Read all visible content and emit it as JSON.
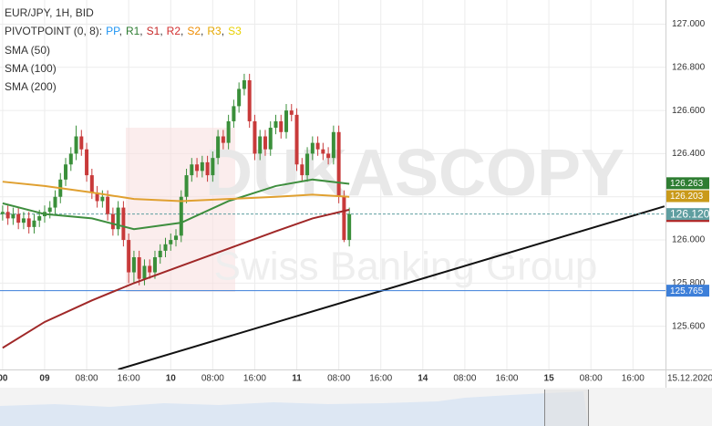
{
  "chart_data": {
    "type": "candlestick",
    "header": "EUR/JPY, 1H, BID",
    "pivot_label": "PIVOTPOINT (0, 8):",
    "pivot_items": [
      {
        "name": "PP",
        "color": "#2196f3"
      },
      {
        "name": "R1",
        "color": "#2e7d32"
      },
      {
        "name": "S1",
        "color": "#c62828"
      },
      {
        "name": "R2",
        "color": "#d32f2f"
      },
      {
        "name": "S2",
        "color": "#ef8c00"
      },
      {
        "name": "R3",
        "color": "#e6a800"
      },
      {
        "name": "S3",
        "color": "#e8d000"
      }
    ],
    "watermark": "DUKASCOPY",
    "watermark_sub": "Swiss Banking Group",
    "date_label": "15.12.2020",
    "up_color": "#3a8f3a",
    "down_color": "#c83a3a",
    "xlim": [
      -8.5,
      118.2
    ],
    "ylim": [
      125.4,
      127.112
    ],
    "xticks": [
      {
        "value": -8,
        "label": "00"
      },
      {
        "value": 0,
        "label": "09"
      },
      {
        "value": 8,
        "label": "08:00"
      },
      {
        "value": 16,
        "label": "16:00"
      },
      {
        "value": 24,
        "label": "10"
      },
      {
        "value": 32,
        "label": "08:00"
      },
      {
        "value": 40,
        "label": "16:00"
      },
      {
        "value": 48,
        "label": "11"
      },
      {
        "value": 56,
        "label": "08:00"
      },
      {
        "value": 64,
        "label": "16:00"
      },
      {
        "value": 72,
        "label": "14"
      },
      {
        "value": 80,
        "label": "08:00"
      },
      {
        "value": 88,
        "label": "16:00"
      },
      {
        "value": 96,
        "label": "15"
      },
      {
        "value": 104,
        "label": "08:00"
      },
      {
        "value": 112,
        "label": "16:00"
      }
    ],
    "yticks": [
      {
        "value": 127,
        "label": "127.000"
      },
      {
        "value": 126.8,
        "label": "126.800"
      },
      {
        "value": 126.6,
        "label": "126.600"
      },
      {
        "value": 126.4,
        "label": "126.400"
      },
      {
        "value": 126.2,
        "label": "126.200"
      },
      {
        "value": 126,
        "label": "126.000"
      },
      {
        "value": 125.8,
        "label": "125.800"
      },
      {
        "value": 125.6,
        "label": "125.600"
      }
    ],
    "grid": true,
    "x": [
      -8,
      -7,
      -6,
      -5,
      -4,
      -3,
      -2,
      -1,
      0,
      1,
      2,
      3,
      4,
      5,
      6,
      7,
      8,
      9,
      10,
      11,
      12,
      13,
      14,
      15,
      16,
      17,
      18,
      19,
      20,
      21,
      22,
      23,
      24,
      25,
      26,
      27,
      28,
      29,
      30,
      31,
      32,
      33,
      34,
      35,
      36,
      37,
      38,
      39,
      40,
      41,
      42,
      43,
      44,
      45,
      46,
      47,
      48,
      49,
      50,
      51,
      52,
      53,
      54,
      55,
      56,
      57,
      58
    ],
    "open": [
      126.12,
      126.13,
      126.1,
      126.12,
      126.08,
      126.1,
      126.06,
      126.09,
      126.11,
      126.13,
      126.15,
      126.2,
      126.28,
      126.35,
      126.4,
      126.48,
      126.42,
      126.3,
      126.22,
      126.18,
      126.2,
      126.12,
      126.05,
      126.15,
      126.0,
      125.85,
      125.92,
      125.82,
      125.88,
      125.85,
      125.92,
      125.95,
      125.98,
      126.0,
      126.02,
      126.2,
      126.3,
      126.35,
      126.32,
      126.36,
      126.3,
      126.38,
      126.48,
      126.45,
      126.55,
      126.62,
      126.7,
      126.74,
      126.55,
      126.4,
      126.48,
      126.42,
      126.52,
      126.55,
      126.5,
      126.6,
      126.58,
      126.35,
      126.3,
      126.4,
      126.45,
      126.42,
      126.4,
      126.38,
      126.5,
      126.2,
      126.0
    ],
    "high": [
      126.16,
      126.16,
      126.15,
      126.15,
      126.13,
      126.13,
      126.12,
      126.14,
      126.16,
      126.18,
      126.23,
      126.31,
      126.38,
      126.43,
      126.53,
      126.51,
      126.45,
      126.33,
      126.25,
      126.23,
      126.23,
      126.15,
      126.18,
      126.18,
      126.03,
      125.95,
      125.95,
      125.91,
      125.91,
      125.95,
      125.98,
      126.01,
      126.03,
      126.05,
      126.23,
      126.33,
      126.38,
      126.38,
      126.39,
      126.39,
      126.41,
      126.51,
      126.51,
      126.58,
      126.65,
      126.73,
      126.77,
      126.77,
      126.58,
      126.51,
      126.51,
      126.55,
      126.58,
      126.58,
      126.63,
      126.63,
      126.61,
      126.38,
      126.43,
      126.48,
      126.48,
      126.45,
      126.43,
      126.53,
      126.53,
      126.23,
      126.15
    ],
    "low": [
      126.09,
      126.07,
      126.07,
      126.05,
      126.05,
      126.03,
      126.03,
      126.06,
      126.08,
      126.1,
      126.12,
      126.17,
      126.25,
      126.32,
      126.37,
      126.39,
      126.27,
      126.19,
      126.15,
      126.15,
      126.09,
      126.02,
      126.02,
      125.97,
      125.8,
      125.8,
      125.79,
      125.79,
      125.82,
      125.82,
      125.89,
      125.92,
      125.95,
      125.97,
      125.99,
      126.17,
      126.27,
      126.29,
      126.29,
      126.27,
      126.27,
      126.35,
      126.42,
      126.42,
      126.52,
      126.59,
      126.67,
      126.52,
      126.37,
      126.37,
      126.39,
      126.39,
      126.49,
      126.47,
      126.47,
      126.55,
      126.32,
      126.27,
      126.27,
      126.37,
      126.39,
      126.37,
      126.35,
      126.35,
      126.17,
      125.99,
      125.97
    ],
    "close": [
      126.13,
      126.1,
      126.12,
      126.08,
      126.1,
      126.06,
      126.09,
      126.11,
      126.13,
      126.15,
      126.2,
      126.28,
      126.35,
      126.4,
      126.48,
      126.42,
      126.3,
      126.22,
      126.18,
      126.2,
      126.12,
      126.05,
      126.15,
      126.0,
      125.85,
      125.92,
      125.82,
      125.88,
      125.85,
      125.92,
      125.95,
      125.98,
      126.0,
      126.02,
      126.2,
      126.3,
      126.35,
      126.32,
      126.36,
      126.3,
      126.38,
      126.48,
      126.45,
      126.55,
      126.62,
      126.7,
      126.74,
      126.55,
      126.4,
      126.48,
      126.42,
      126.52,
      126.55,
      126.5,
      126.6,
      126.58,
      126.35,
      126.3,
      126.4,
      126.45,
      126.42,
      126.4,
      126.38,
      126.5,
      126.2,
      126.0,
      126.12
    ],
    "series": [
      {
        "name": "SMA (50)",
        "color": "#3e8e3e",
        "x": [
          -8,
          0,
          9,
          17,
          26,
          35,
          44,
          51,
          58
        ],
        "values": [
          126.17,
          126.12,
          126.1,
          126.05,
          126.08,
          126.18,
          126.25,
          126.28,
          126.26
        ]
      },
      {
        "name": "SMA (100)",
        "color": "#e0a030",
        "x": [
          -8,
          0,
          9,
          17,
          26,
          35,
          44,
          51,
          58
        ],
        "values": [
          126.27,
          126.25,
          126.22,
          126.19,
          126.18,
          126.19,
          126.2,
          126.21,
          126.2
        ]
      },
      {
        "name": "SMA (200)",
        "color": "#a02828",
        "x": [
          -8,
          0,
          9,
          17,
          26,
          35,
          44,
          51,
          58
        ],
        "values": [
          125.5,
          125.62,
          125.72,
          125.8,
          125.88,
          125.96,
          126.04,
          126.1,
          126.14
        ]
      }
    ],
    "trendline": {
      "color": "#111111",
      "x": [
        14,
        118
      ],
      "values": [
        125.4,
        126.156
      ]
    },
    "levels": [
      {
        "value": 126.111,
        "label": "126.111",
        "color": "#b22222"
      },
      {
        "value": 126.263,
        "label": "126.263",
        "color": "#2e7d32"
      },
      {
        "value": 126.203,
        "label": "126.203",
        "color": "#c99a1a"
      },
      {
        "value": 126.12,
        "label": "126.120",
        "color": "#5f9ea0",
        "line": "dashed"
      },
      {
        "value": 125.765,
        "label": "125.765",
        "color": "#3d7fd9",
        "line": "solid"
      }
    ]
  }
}
